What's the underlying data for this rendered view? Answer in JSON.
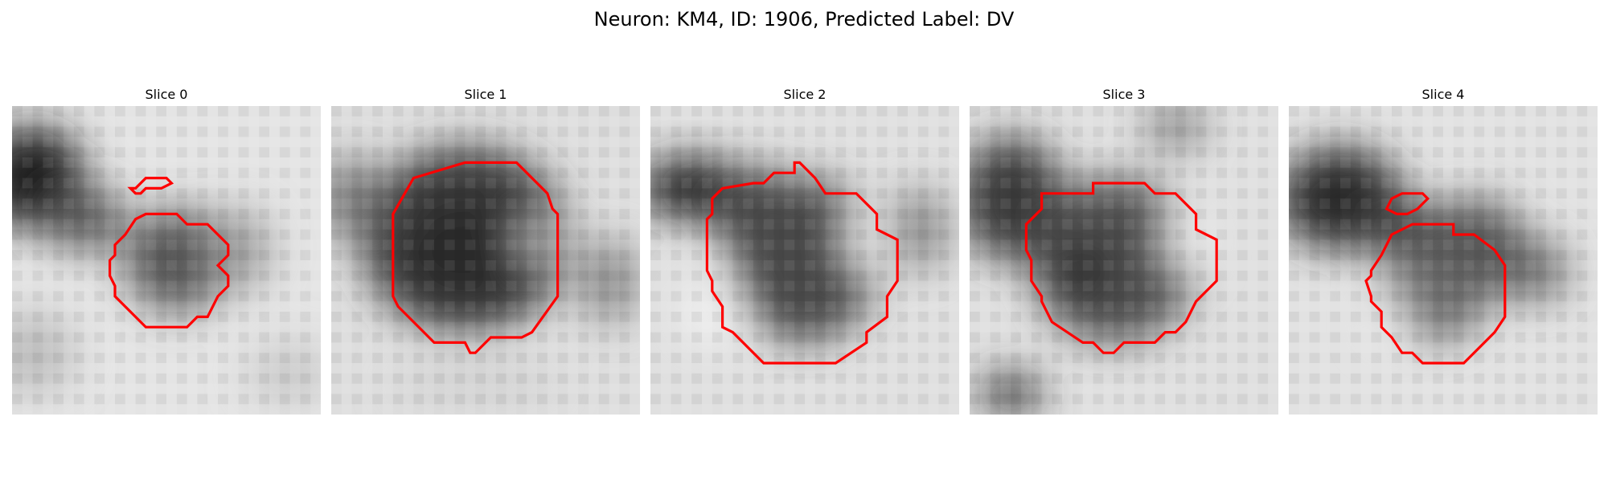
{
  "figure": {
    "title": "Neuron: KM4, ID: 1906, Predicted Label: DV",
    "contour_color": "#ff0000",
    "colormap": "grayscale"
  },
  "panels": [
    {
      "title": "Slice 0"
    },
    {
      "title": "Slice 1"
    },
    {
      "title": "Slice 2"
    },
    {
      "title": "Slice 3"
    },
    {
      "title": "Slice 4"
    }
  ]
}
